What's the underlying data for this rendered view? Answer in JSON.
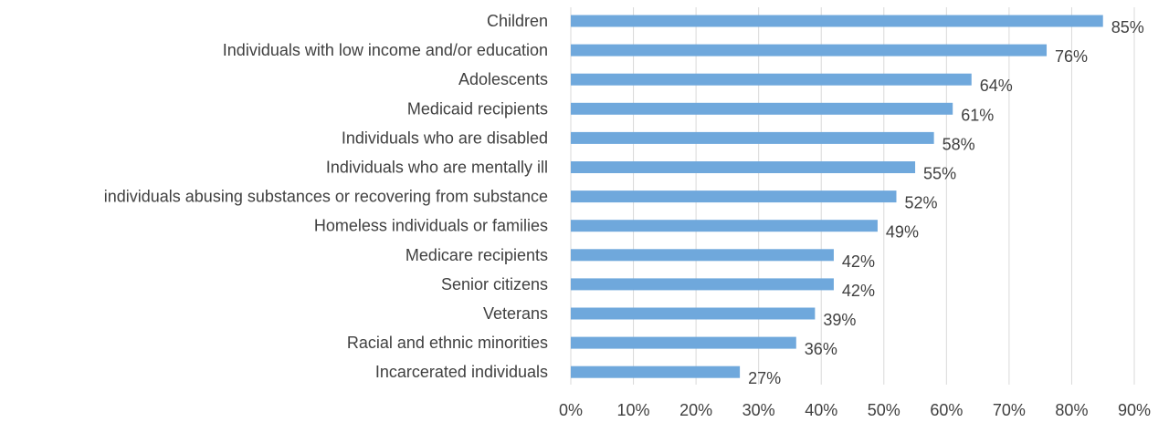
{
  "chart_data": {
    "type": "bar",
    "orientation": "horizontal",
    "categories": [
      "Children",
      "Individuals with low income and/or education",
      "Adolescents",
      "Medicaid recipients",
      "Individuals who are disabled",
      "Individuals who are mentally ill",
      "individuals abusing substances or recovering from substance",
      "Homeless individuals or families",
      "Medicare recipients",
      "Senior citizens",
      "Veterans",
      "Racial and ethnic minorities",
      "Incarcerated individuals"
    ],
    "values": [
      85,
      76,
      64,
      61,
      58,
      55,
      52,
      49,
      42,
      42,
      39,
      36,
      27
    ],
    "value_labels": [
      "85%",
      "76%",
      "64%",
      "61%",
      "58%",
      "55%",
      "52%",
      "49%",
      "42%",
      "42%",
      "39%",
      "36%",
      "27%"
    ],
    "x_ticks": [
      "0%",
      "10%",
      "20%",
      "30%",
      "40%",
      "50%",
      "60%",
      "70%",
      "80%",
      "90%"
    ],
    "xlim": [
      0,
      90
    ],
    "grid": "vertical",
    "legend": "none",
    "bar_color": "#6fa8dc",
    "grid_color": "#d9d9d9",
    "text_color": "#404040"
  }
}
